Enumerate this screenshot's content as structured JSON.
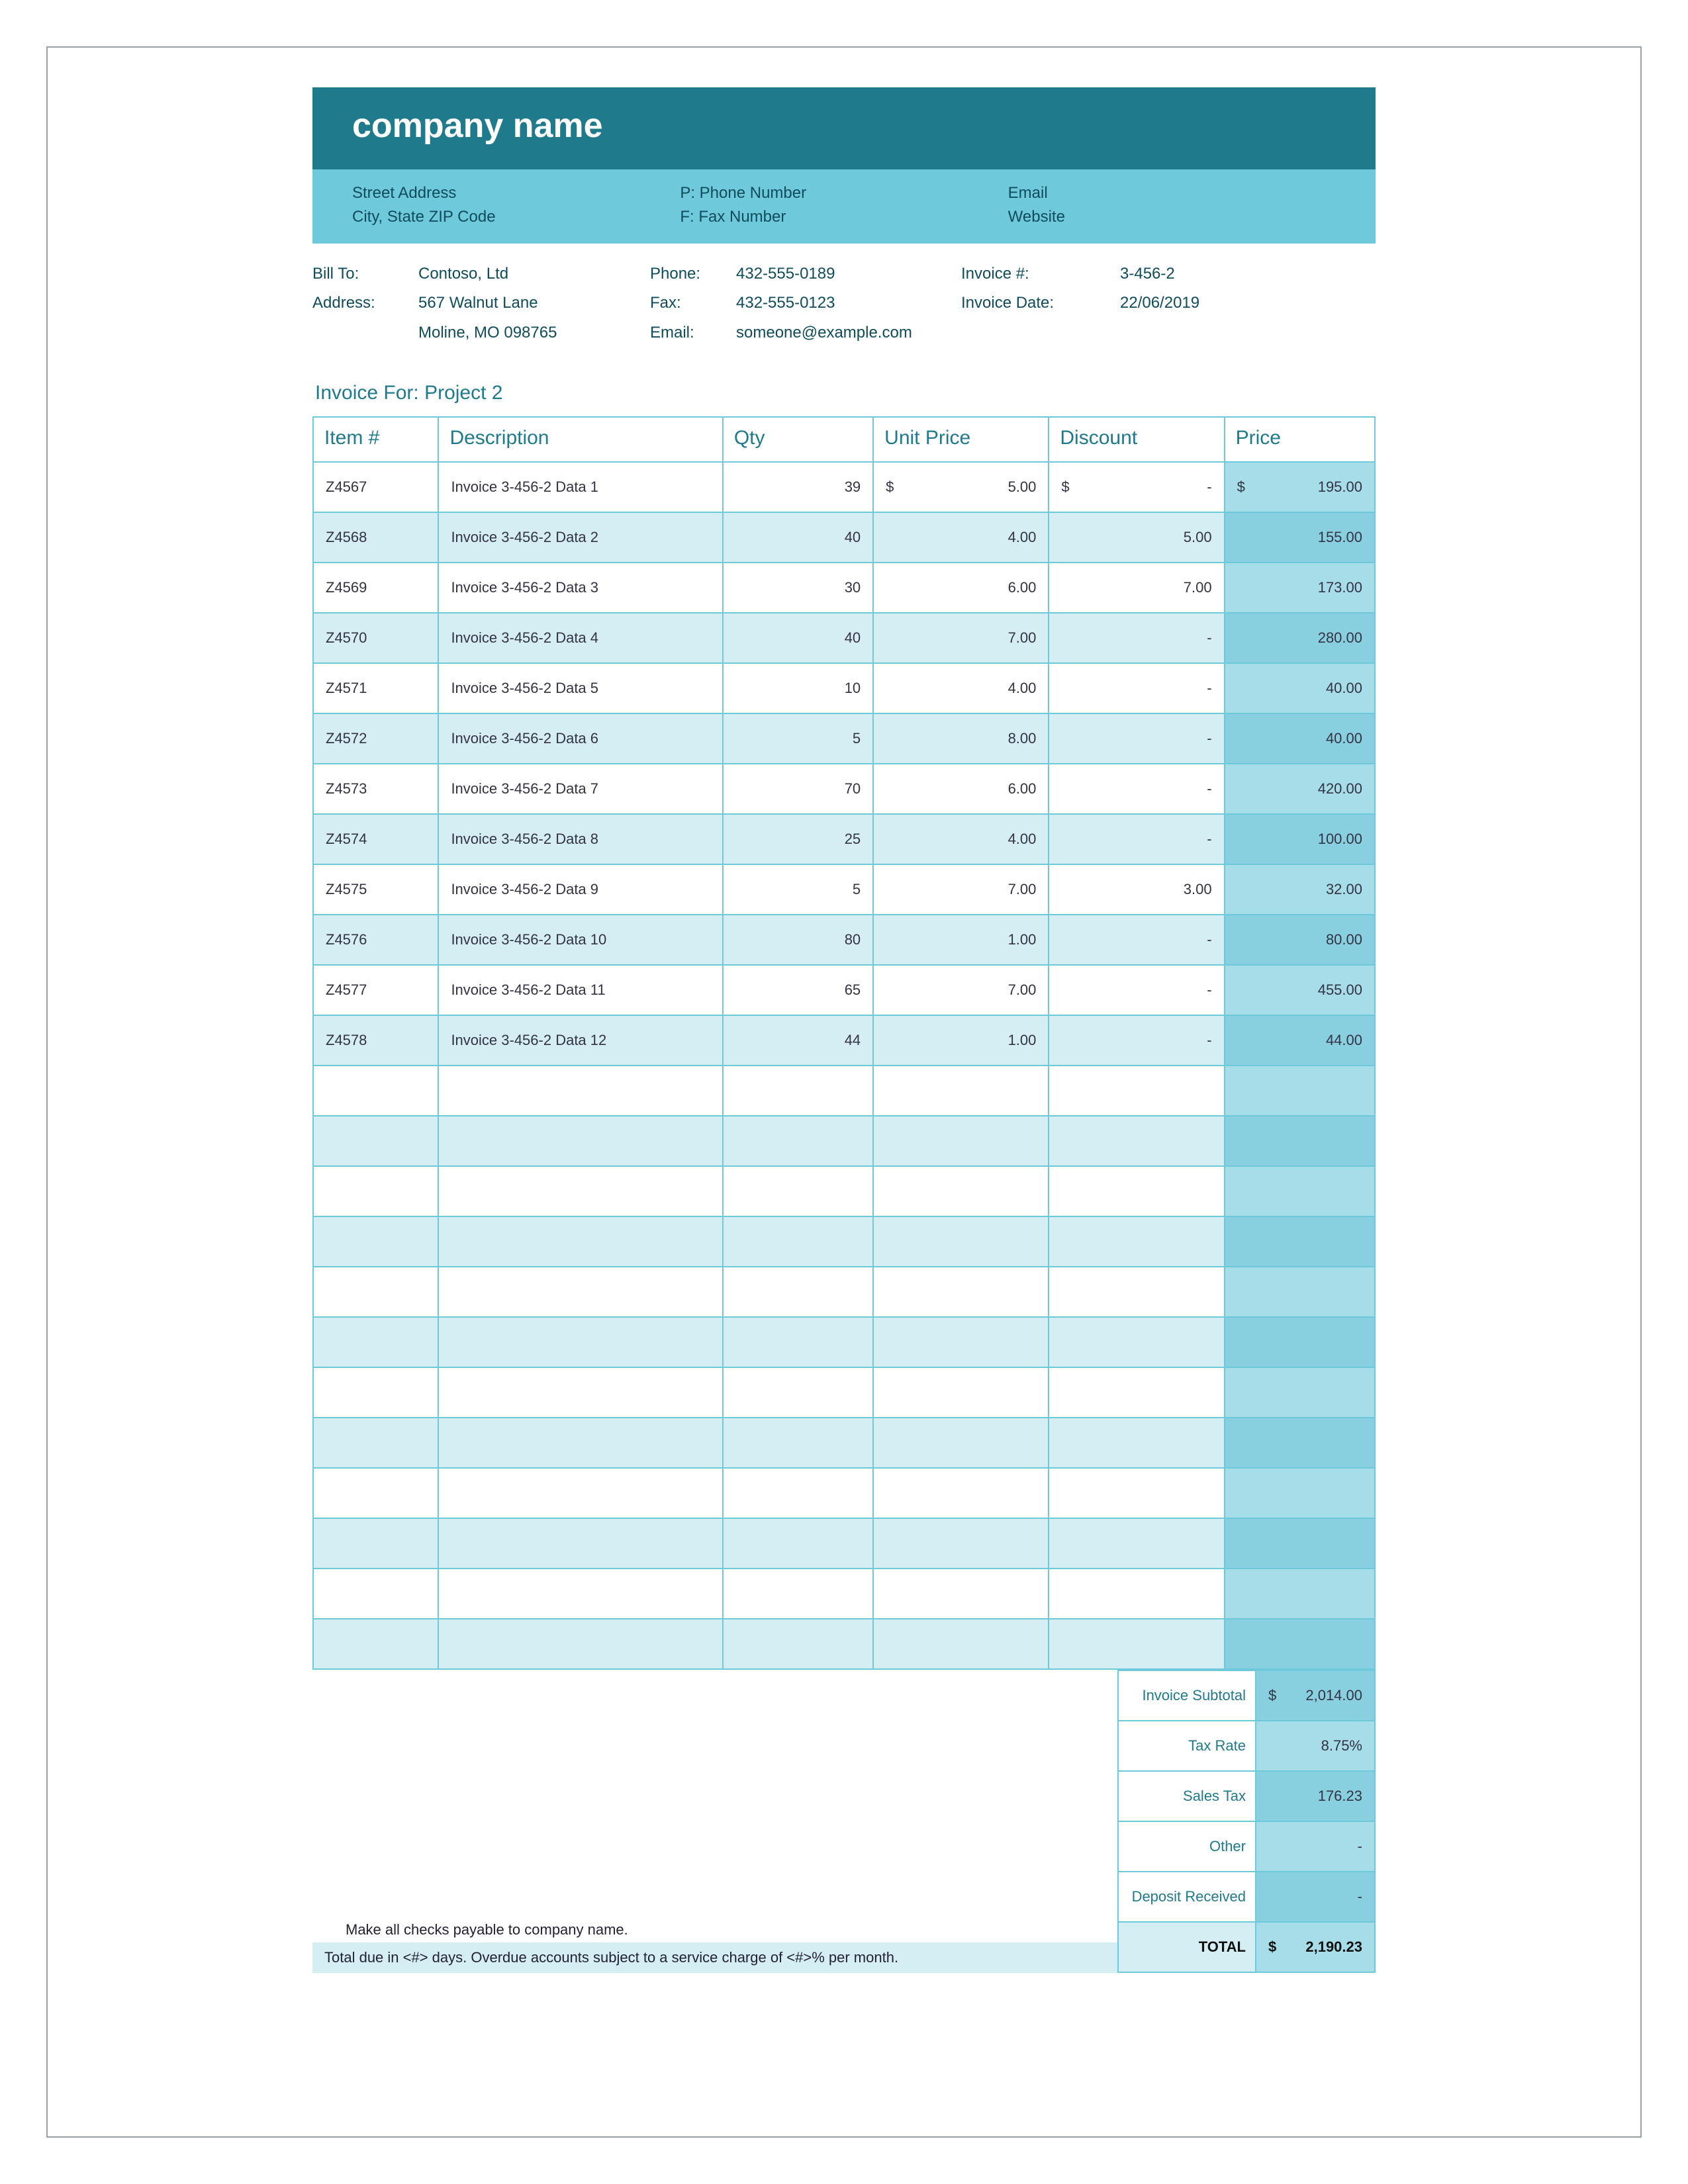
{
  "colors": {
    "header_dark": "#1f7a8c",
    "header_light": "#6ec9db",
    "row_alt": "#d5eef4",
    "price_col_a": "#a7dde8",
    "price_col_b": "#88d0df",
    "text_teal": "#0f4c5c"
  },
  "header": {
    "company_name": "company name",
    "street": "Street Address",
    "city_zip": "City, State ZIP Code",
    "phone_label": "P: Phone Number",
    "fax_label": "F: Fax Number",
    "email_label": "Email",
    "website_label": "Website"
  },
  "billto": {
    "billto_lbl": "Bill To:",
    "address_lbl": "Address:",
    "customer": "Contoso, Ltd",
    "addr1": "567 Walnut Lane",
    "addr2": "Moline, MO 098765",
    "phone_lbl": "Phone:",
    "phone": "432-555-0189",
    "fax_lbl": "Fax:",
    "fax": "432-555-0123",
    "email_lbl": "Email:",
    "email": "someone@example.com",
    "invno_lbl": "Invoice #:",
    "invno": "3-456-2",
    "invdate_lbl": "Invoice Date:",
    "invdate": "22/06/2019"
  },
  "invoice_for_label": "Invoice For:",
  "invoice_for_value": "Project 2",
  "columns": {
    "item": "Item #",
    "desc": "Description",
    "qty": "Qty",
    "unit": "Unit Price",
    "disc": "Discount",
    "price": "Price"
  },
  "rows": [
    {
      "item": "Z4567",
      "desc": "Invoice 3-456-2 Data 1",
      "qty": "39",
      "unit_sym": "$",
      "unit": "5.00",
      "disc_sym": "$",
      "disc": "-",
      "price_sym": "$",
      "price": "195.00"
    },
    {
      "item": "Z4568",
      "desc": "Invoice 3-456-2 Data 2",
      "qty": "40",
      "unit_sym": "",
      "unit": "4.00",
      "disc_sym": "",
      "disc": "5.00",
      "price_sym": "",
      "price": "155.00"
    },
    {
      "item": "Z4569",
      "desc": "Invoice 3-456-2 Data 3",
      "qty": "30",
      "unit_sym": "",
      "unit": "6.00",
      "disc_sym": "",
      "disc": "7.00",
      "price_sym": "",
      "price": "173.00"
    },
    {
      "item": "Z4570",
      "desc": "Invoice 3-456-2 Data 4",
      "qty": "40",
      "unit_sym": "",
      "unit": "7.00",
      "disc_sym": "",
      "disc": "-",
      "price_sym": "",
      "price": "280.00"
    },
    {
      "item": "Z4571",
      "desc": "Invoice 3-456-2 Data 5",
      "qty": "10",
      "unit_sym": "",
      "unit": "4.00",
      "disc_sym": "",
      "disc": "-",
      "price_sym": "",
      "price": "40.00"
    },
    {
      "item": "Z4572",
      "desc": "Invoice 3-456-2 Data 6",
      "qty": "5",
      "unit_sym": "",
      "unit": "8.00",
      "disc_sym": "",
      "disc": "-",
      "price_sym": "",
      "price": "40.00"
    },
    {
      "item": "Z4573",
      "desc": "Invoice 3-456-2 Data 7",
      "qty": "70",
      "unit_sym": "",
      "unit": "6.00",
      "disc_sym": "",
      "disc": "-",
      "price_sym": "",
      "price": "420.00"
    },
    {
      "item": "Z4574",
      "desc": "Invoice 3-456-2 Data 8",
      "qty": "25",
      "unit_sym": "",
      "unit": "4.00",
      "disc_sym": "",
      "disc": "-",
      "price_sym": "",
      "price": "100.00"
    },
    {
      "item": "Z4575",
      "desc": "Invoice 3-456-2 Data 9",
      "qty": "5",
      "unit_sym": "",
      "unit": "7.00",
      "disc_sym": "",
      "disc": "3.00",
      "price_sym": "",
      "price": "32.00"
    },
    {
      "item": "Z4576",
      "desc": "Invoice 3-456-2 Data 10",
      "qty": "80",
      "unit_sym": "",
      "unit": "1.00",
      "disc_sym": "",
      "disc": "-",
      "price_sym": "",
      "price": "80.00"
    },
    {
      "item": "Z4577",
      "desc": "Invoice 3-456-2 Data 11",
      "qty": "65",
      "unit_sym": "",
      "unit": "7.00",
      "disc_sym": "",
      "disc": "-",
      "price_sym": "",
      "price": "455.00"
    },
    {
      "item": "Z4578",
      "desc": "Invoice 3-456-2 Data 12",
      "qty": "44",
      "unit_sym": "",
      "unit": "1.00",
      "disc_sym": "",
      "disc": "-",
      "price_sym": "",
      "price": "44.00"
    }
  ],
  "empty_rows": 12,
  "summary": {
    "subtotal_lbl": "Invoice Subtotal",
    "subtotal_sym": "$",
    "subtotal": "2,014.00",
    "taxrate_lbl": "Tax Rate",
    "taxrate": "8.75%",
    "salestax_lbl": "Sales Tax",
    "salestax": "176.23",
    "other_lbl": "Other",
    "other": "-",
    "deposit_lbl": "Deposit Received",
    "deposit": "-",
    "total_lbl": "TOTAL",
    "total_sym": "$",
    "total": "2,190.23"
  },
  "footer": {
    "line1": "Make all checks payable to company name.",
    "line2": "Total due in <#> days. Overdue accounts subject to a service charge of <#>% per month."
  }
}
